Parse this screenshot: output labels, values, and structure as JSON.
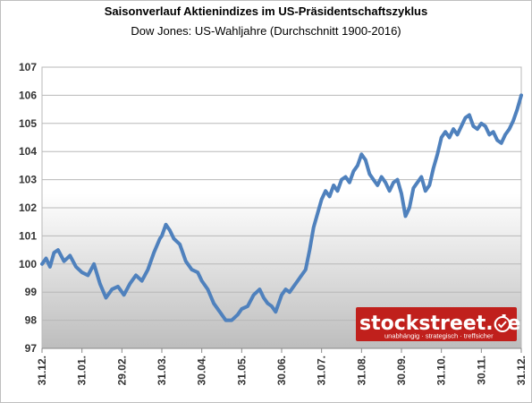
{
  "chart_data": {
    "type": "line",
    "title": "Saisonverlauf Aktienindizes im US-Präsidentschaftszyklus",
    "subtitle": "Dow Jones: US-Wahljahre (Durchschnitt 1900-2016)",
    "xlabel": "",
    "ylabel": "",
    "ylim": [
      97,
      107
    ],
    "yticks": [
      "97",
      "98",
      "99",
      "100",
      "101",
      "102",
      "103",
      "104",
      "105",
      "106",
      "107"
    ],
    "xticks": [
      "31.12.",
      "31.01.",
      "29.02.",
      "31.03.",
      "30.04.",
      "31.05.",
      "30.06.",
      "31.07.",
      "31.08.",
      "30.09.",
      "31.10.",
      "30.11.",
      "31.12."
    ],
    "grid": true,
    "legend": "none",
    "series": [
      {
        "color": "#4f81bd",
        "x": [
          0,
          0.1,
          0.2,
          0.3,
          0.4,
          0.55,
          0.7,
          0.85,
          1.0,
          1.15,
          1.3,
          1.45,
          1.6,
          1.75,
          1.9,
          2.05,
          2.2,
          2.35,
          2.5,
          2.65,
          2.8,
          2.95,
          3.0,
          3.1,
          3.2,
          3.3,
          3.45,
          3.6,
          3.75,
          3.9,
          4.0,
          4.15,
          4.3,
          4.45,
          4.6,
          4.75,
          4.9,
          5.0,
          5.15,
          5.3,
          5.45,
          5.55,
          5.65,
          5.75,
          5.85,
          6.0,
          6.1,
          6.2,
          6.3,
          6.4,
          6.5,
          6.6,
          6.7,
          6.8,
          6.9,
          7.0,
          7.1,
          7.2,
          7.3,
          7.4,
          7.5,
          7.6,
          7.7,
          7.8,
          7.9,
          8.0,
          8.1,
          8.2,
          8.3,
          8.4,
          8.5,
          8.6,
          8.7,
          8.8,
          8.9,
          9.0,
          9.1,
          9.2,
          9.3,
          9.4,
          9.5,
          9.6,
          9.7,
          9.8,
          9.9,
          10.0,
          10.1,
          10.2,
          10.3,
          10.4,
          10.5,
          10.6,
          10.7,
          10.8,
          10.9,
          11.0,
          11.1,
          11.2,
          11.3,
          11.4,
          11.5,
          11.6,
          11.7,
          11.8,
          11.9,
          12.0
        ],
        "values": [
          100.0,
          100.2,
          99.9,
          100.4,
          100.5,
          100.1,
          100.3,
          99.9,
          99.7,
          99.6,
          100.0,
          99.3,
          98.8,
          99.1,
          99.2,
          98.9,
          99.3,
          99.6,
          99.4,
          99.8,
          100.4,
          100.9,
          101.0,
          101.4,
          101.2,
          100.9,
          100.7,
          100.1,
          99.8,
          99.7,
          99.4,
          99.1,
          98.6,
          98.3,
          98.0,
          98.0,
          98.2,
          98.4,
          98.5,
          98.9,
          99.1,
          98.8,
          98.6,
          98.5,
          98.3,
          98.9,
          99.1,
          99.0,
          99.2,
          99.4,
          99.6,
          99.8,
          100.5,
          101.3,
          101.8,
          102.3,
          102.6,
          102.4,
          102.8,
          102.6,
          103.0,
          103.1,
          102.9,
          103.3,
          103.5,
          103.9,
          103.7,
          103.2,
          103.0,
          102.8,
          103.1,
          102.9,
          102.6,
          102.9,
          103.0,
          102.5,
          101.7,
          102.0,
          102.7,
          102.9,
          103.1,
          102.6,
          102.8,
          103.4,
          103.9,
          104.5,
          104.7,
          104.5,
          104.8,
          104.6,
          104.9,
          105.2,
          105.3,
          104.9,
          104.8,
          105.0,
          104.9,
          104.6,
          104.7,
          104.4,
          104.3,
          104.6,
          104.8,
          105.1,
          105.5,
          106.0
        ]
      }
    ]
  },
  "brand": {
    "name": "stockstreet.de",
    "tagline": "unabhängig · strategisch · treffsicher",
    "color": "#c0201c"
  }
}
